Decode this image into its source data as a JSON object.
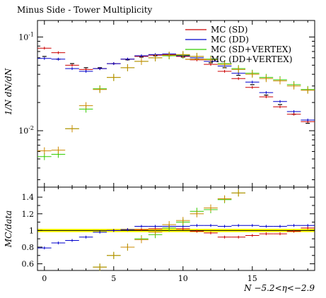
{
  "chart_data": [
    {
      "type": "scatter",
      "panel": "main",
      "title": "Minus Side - Tower Multiplicity",
      "ylabel": "1/N dN/dN",
      "xlabel": "",
      "yscale": "log",
      "xlim": [
        -0.5,
        19.5
      ],
      "ylim": [
        0.0025,
        0.15
      ],
      "x_ticks": [
        0,
        5,
        10,
        15
      ],
      "y_tick_labels": [
        "10^-2",
        "10^-1"
      ],
      "legend_position": "top-right",
      "legend": [
        {
          "name": "MC (SD)",
          "color": "#cc0000"
        },
        {
          "name": "MC (DD)",
          "color": "#0000cc"
        },
        {
          "name": "MC (SD+VERTEX)",
          "color": "#33cc00"
        },
        {
          "name": "MC (DD+VERTEX)",
          "color": "#cc8800"
        }
      ],
      "data_reference": {
        "color": "#000000",
        "y": [
          0.062,
          0.058,
          0.052,
          0.047,
          0.047,
          0.052,
          0.057,
          0.061,
          0.063,
          0.063,
          0.061,
          0.058,
          0.053,
          0.047,
          0.039,
          0.031,
          0.024,
          0.019,
          0.015,
          0.012
        ]
      },
      "series": [
        {
          "name": "MC (SD)",
          "color": "#cc0000",
          "x": [
            0,
            1,
            2,
            3,
            4,
            5,
            6,
            7,
            8,
            9,
            10,
            11,
            12,
            13,
            14,
            15,
            16,
            17,
            18,
            19
          ],
          "y": [
            0.076,
            0.068,
            0.05,
            0.045,
            0.046,
            0.052,
            0.058,
            0.062,
            0.064,
            0.065,
            0.062,
            0.057,
            0.051,
            0.043,
            0.036,
            0.029,
            0.023,
            0.018,
            0.015,
            0.0125
          ]
        },
        {
          "name": "MC (DD)",
          "color": "#0000cc",
          "x": [
            0,
            1,
            2,
            3,
            4,
            5,
            6,
            7,
            8,
            9,
            10,
            11,
            12,
            13,
            14,
            15,
            16,
            17,
            18,
            19
          ],
          "y": [
            0.059,
            0.058,
            0.046,
            0.043,
            0.046,
            0.052,
            0.058,
            0.063,
            0.065,
            0.066,
            0.063,
            0.06,
            0.055,
            0.049,
            0.041,
            0.033,
            0.0255,
            0.0205,
            0.016,
            0.013
          ]
        },
        {
          "name": "MC (SD+VERTEX)",
          "color": "#33cc00",
          "x": [
            0,
            1,
            2,
            3,
            4,
            5,
            6,
            7,
            8,
            9,
            10,
            11,
            12,
            13,
            14,
            15,
            16,
            17,
            18,
            19
          ],
          "y": [
            0.0053,
            0.0056,
            0.0105,
            0.017,
            0.028,
            0.037,
            0.047,
            0.055,
            0.06,
            0.063,
            0.064,
            0.062,
            0.058,
            0.052,
            0.046,
            0.041,
            0.037,
            0.035,
            0.031,
            0.0275
          ]
        },
        {
          "name": "MC (DD+VERTEX)",
          "color": "#cc8800",
          "x": [
            0,
            1,
            2,
            3,
            4,
            5,
            6,
            7,
            8,
            9,
            10,
            11,
            12,
            13,
            14,
            15,
            16,
            17,
            18,
            19
          ],
          "y": [
            0.0061,
            0.0062,
            0.0105,
            0.0185,
            0.0275,
            0.037,
            0.047,
            0.055,
            0.06,
            0.064,
            0.065,
            0.062,
            0.057,
            0.051,
            0.045,
            0.04,
            0.036,
            0.034,
            0.03,
            0.027
          ]
        }
      ]
    },
    {
      "type": "scatter",
      "panel": "ratio",
      "ylabel": "MC/data",
      "xlabel": "N −5.2<η<−2.9",
      "xlim": [
        -0.5,
        19.5
      ],
      "ylim": [
        0.52,
        1.52
      ],
      "x_ticks": [
        0,
        5,
        10,
        15
      ],
      "x_tick_labels": [
        "0",
        "5",
        "10",
        "15"
      ],
      "y_ticks": [
        0.6,
        0.8,
        1.0,
        1.2,
        1.4
      ],
      "y_tick_labels": [
        "0.6",
        "0.8",
        "1",
        "1.2",
        "1.4"
      ],
      "reference_band": {
        "center": 1.0,
        "low": 0.98,
        "high": 1.02,
        "color": "#ffff00"
      },
      "series": [
        {
          "name": "MC (SD)",
          "color": "#cc0000",
          "x": [
            5,
            6,
            7,
            8,
            9,
            10,
            11,
            12,
            13,
            14,
            15,
            16,
            17,
            18,
            19
          ],
          "y": [
            1.0,
            1.01,
            1.01,
            1.02,
            1.03,
            1.02,
            0.99,
            0.97,
            0.92,
            0.92,
            0.94,
            0.96,
            0.96,
            0.99,
            1.03
          ]
        },
        {
          "name": "MC (DD)",
          "color": "#0000cc",
          "x": [
            0,
            1,
            2,
            3,
            4,
            5,
            6,
            7,
            8,
            9,
            10,
            11,
            12,
            13,
            14,
            15,
            16,
            17,
            18,
            19
          ],
          "y": [
            0.79,
            0.85,
            0.88,
            0.92,
            0.98,
            1.0,
            1.01,
            1.05,
            1.05,
            1.05,
            1.05,
            1.06,
            1.06,
            1.05,
            1.06,
            1.06,
            1.05,
            1.05,
            1.06,
            1.06
          ]
        },
        {
          "name": "MC (SD+VERTEX)",
          "color": "#33cc00",
          "x": [
            4,
            5,
            6,
            7,
            8,
            9,
            10,
            11,
            12,
            13,
            14
          ],
          "y": [
            0.56,
            0.7,
            0.8,
            0.9,
            0.95,
            1.03,
            1.1,
            1.23,
            1.25,
            1.37,
            1.45
          ]
        },
        {
          "name": "MC (DD+VERTEX)",
          "color": "#cc8800",
          "x": [
            4,
            5,
            6,
            7,
            8,
            9,
            10,
            11,
            12,
            13,
            14
          ],
          "y": [
            0.56,
            0.7,
            0.8,
            0.89,
            0.98,
            1.07,
            1.12,
            1.2,
            1.27,
            1.38,
            1.45
          ]
        }
      ]
    }
  ]
}
